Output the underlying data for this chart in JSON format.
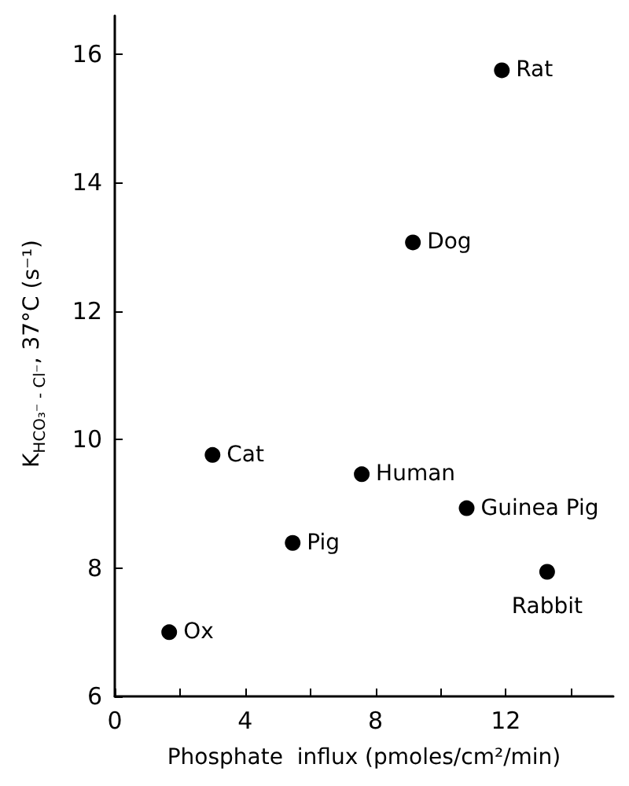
{
  "chart_data": {
    "type": "scatter",
    "xlabel": "Phosphate  influx (pmoles/cm²/min)",
    "ylabel": "K$_{HCO₃⁻ - Cl⁻}$, 37°C (s⁻¹)",
    "x": [
      1.67,
      3.0,
      5.46,
      7.58,
      9.15,
      10.8,
      11.88,
      13.27
    ],
    "series": [
      {
        "color": "#000000",
        "values": [
          7.0,
          9.76,
          8.39,
          9.46,
          13.07,
          8.93,
          15.75,
          7.94
        ]
      }
    ],
    "annotations": [
      {
        "text": "Ox",
        "x": 1.67,
        "y": 7.0
      },
      {
        "text": "Cat",
        "x": 3.0,
        "y": 9.76
      },
      {
        "text": "Pig",
        "x": 5.46,
        "y": 8.39
      },
      {
        "text": "Human",
        "x": 7.58,
        "y": 9.46
      },
      {
        "text": "Dog",
        "x": 9.15,
        "y": 13.07
      },
      {
        "text": "Guinea Pig",
        "x": 10.8,
        "y": 8.93
      },
      {
        "text": "Rat",
        "x": 11.88,
        "y": 15.75
      },
      {
        "text": "Rabbit",
        "x": 13.27,
        "y": 7.94
      }
    ],
    "xlim": [
      0,
      15.3
    ],
    "ylim": [
      6,
      16.6
    ],
    "xticks": [
      0,
      {
        "value": 2,
        "label": null
      },
      4,
      {
        "value": 6,
        "label": null
      },
      8,
      {
        "value": 10,
        "label": null
      },
      12,
      {
        "value": 14,
        "label": null
      }
    ],
    "yticks": [
      6,
      8,
      10,
      12,
      14,
      16
    ],
    "grid": false,
    "marker": "circle"
  }
}
